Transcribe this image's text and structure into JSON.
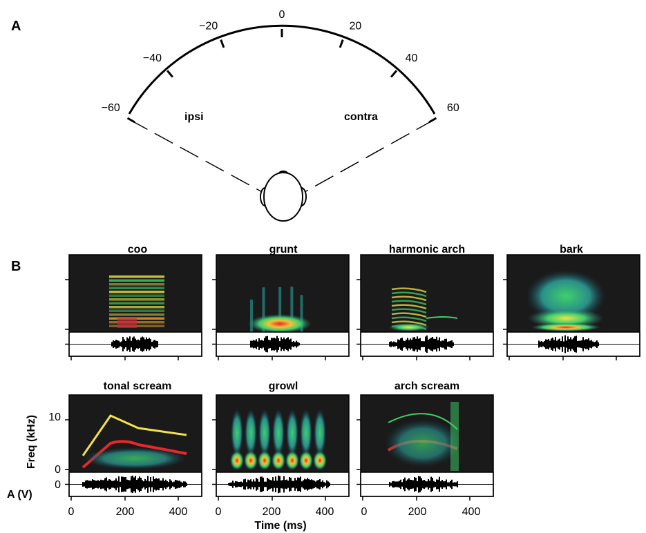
{
  "panel_a": {
    "letter": "A",
    "angle_ticks": [
      "−60",
      "−40",
      "−20",
      "0",
      "20",
      "40",
      "60"
    ],
    "angles": [
      -60,
      -40,
      -20,
      0,
      20,
      40,
      60
    ],
    "side_left": "ipsi",
    "side_right": "contra"
  },
  "panel_b": {
    "letter": "B",
    "y_ticks": [
      "10",
      "0"
    ],
    "amp_tick": "0",
    "x_ticks": [
      "0",
      "200",
      "400"
    ],
    "xlabel": "Time (ms)",
    "ylabel_freq": "Freq (kHz)",
    "ylabel_amp": "A (V)",
    "calls": [
      {
        "title": "coo"
      },
      {
        "title": "grunt"
      },
      {
        "title": "harmonic arch"
      },
      {
        "title": "bark"
      },
      {
        "title": "tonal scream"
      },
      {
        "title": "growl"
      },
      {
        "title": "arch scream"
      }
    ]
  },
  "colors": {
    "spectrogram_bg": "#1a1a1a",
    "low": "#2a6f7a",
    "mid": "#3fcf6a",
    "high": "#f2e24a",
    "peak": "#e8282a"
  }
}
